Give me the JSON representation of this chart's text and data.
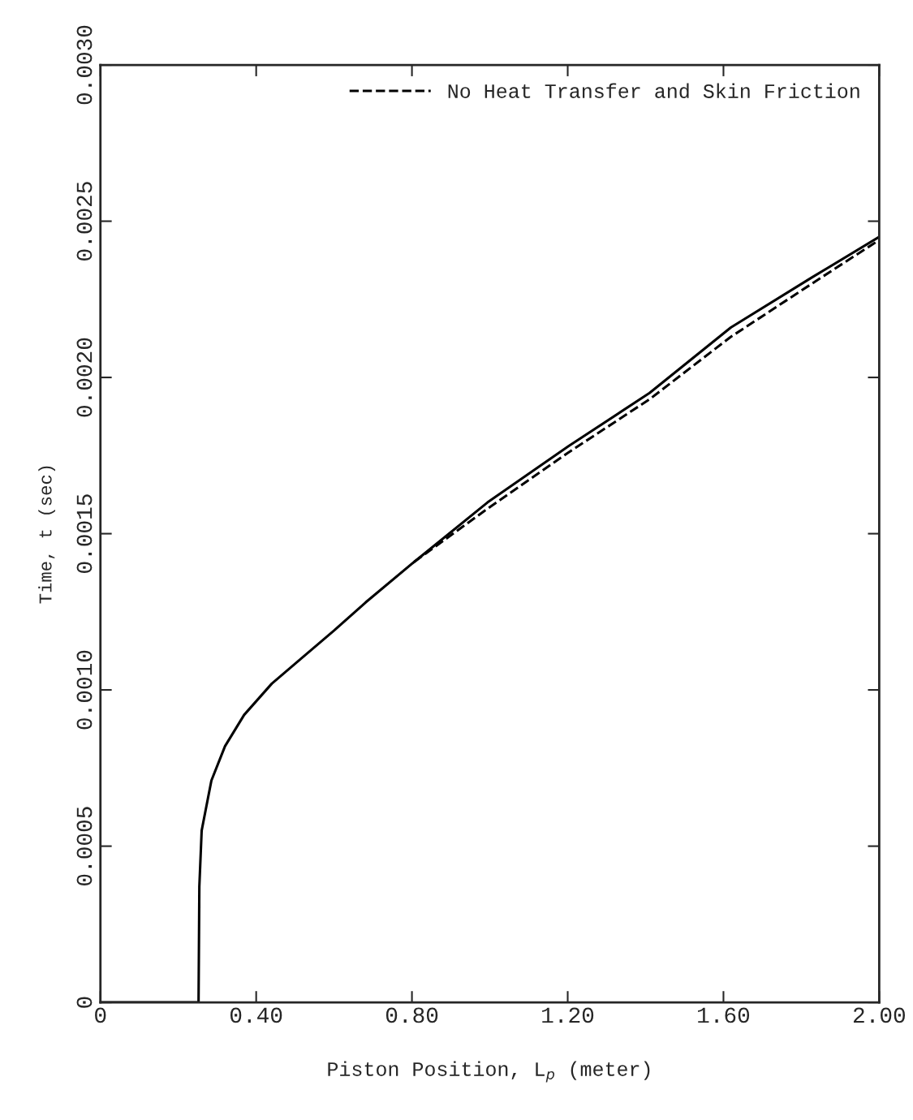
{
  "chart_data": {
    "type": "line",
    "xlabel": "Piston Position, L$_{p}$ (meter)",
    "ylabel": "Time, t (sec)",
    "xlim": [
      0,
      2.0
    ],
    "ylim": [
      0,
      0.003
    ],
    "xticks": [
      {
        "value": 0,
        "label": "0"
      },
      {
        "value": 0.4,
        "label": "0.40"
      },
      {
        "value": 0.8,
        "label": "0.80"
      },
      {
        "value": 1.2,
        "label": "1.20"
      },
      {
        "value": 1.6,
        "label": "1.60"
      },
      {
        "value": 2.0,
        "label": "2.00"
      }
    ],
    "yticks": [
      {
        "value": 0,
        "label": "0"
      },
      {
        "value": 0.0005,
        "label": "0.0005"
      },
      {
        "value": 0.001,
        "label": "0.0010"
      },
      {
        "value": 0.0015,
        "label": "0.0015"
      },
      {
        "value": 0.002,
        "label": "0.0020"
      },
      {
        "value": 0.0025,
        "label": "0.0025"
      },
      {
        "value": 0.003,
        "label": "0.0030"
      }
    ],
    "grid": false,
    "legend": "top right",
    "series": [
      {
        "color": "#000000",
        "line_style": "solid",
        "x": [
          0,
          0.252,
          0.254,
          0.26,
          0.285,
          0.32,
          0.369,
          0.44,
          0.515,
          0.6,
          0.681,
          0.806,
          0.994,
          1.202,
          1.41,
          1.619,
          1.827,
          2.0
        ],
        "values": [
          0,
          0,
          0.00037,
          0.00055,
          0.00071,
          0.00082,
          0.00092,
          0.00102,
          0.0011,
          0.00119,
          0.00128,
          0.00141,
          0.0016,
          0.00178,
          0.00195,
          0.00216,
          0.00232,
          0.00245
        ]
      },
      {
        "name": "No Heat Transfer and Skin Friction",
        "color": "#000000",
        "line_style": "dashed",
        "x": [
          0.806,
          0.994,
          1.202,
          1.41,
          1.619,
          1.827,
          2.0
        ],
        "values": [
          0.00141,
          0.00158,
          0.00176,
          0.00193,
          0.00213,
          0.0023,
          0.00244
        ]
      }
    ]
  }
}
